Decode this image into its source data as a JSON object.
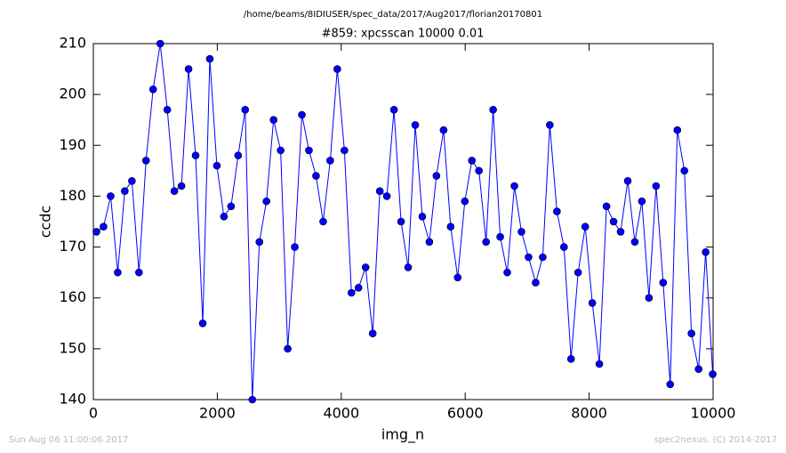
{
  "chart_data": {
    "type": "line",
    "suptitle": "/home/beams/8IDIUSER/spec_data/2017/Aug2017/florian20170801",
    "title": "#859: xpcsscan 10000 0.01",
    "x_label": "img_n",
    "y_label": "ccdc",
    "timestamp": "Sun Aug 06 11:00:06 2017",
    "credit": "spec2nexus, (C) 2014-2017",
    "x": [
      50,
      164,
      279,
      393,
      507,
      622,
      736,
      850,
      964,
      1079,
      1193,
      1307,
      1422,
      1536,
      1650,
      1765,
      1879,
      1993,
      2107,
      2222,
      2336,
      2450,
      2565,
      2679,
      2793,
      2908,
      3022,
      3136,
      3250,
      3365,
      3479,
      3593,
      3708,
      3822,
      3936,
      4051,
      4165,
      4279,
      4393,
      4508,
      4622,
      4736,
      4851,
      4965,
      5079,
      5194,
      5308,
      5422,
      5536,
      5651,
      5765,
      5879,
      5994,
      6108,
      6222,
      6337,
      6451,
      6565,
      6679,
      6794,
      6908,
      7022,
      7137,
      7251,
      7365,
      7480,
      7594,
      7708,
      7822,
      7937,
      8051,
      8165,
      8280,
      8394,
      8508,
      8623,
      8737,
      8851,
      8965,
      9080,
      9194,
      9308,
      9423,
      9537,
      9651,
      9766,
      9880,
      9994
    ],
    "series": [
      {
        "color": "#0000ff",
        "values": [
          173,
          174,
          180,
          165,
          181,
          183,
          165,
          187,
          201,
          210,
          197,
          181,
          182,
          205,
          188,
          155,
          207,
          186,
          176,
          178,
          188,
          197,
          140,
          171,
          179,
          195,
          189,
          150,
          170,
          196,
          189,
          184,
          175,
          187,
          205,
          189,
          161,
          162,
          166,
          153,
          181,
          180,
          197,
          175,
          166,
          194,
          176,
          171,
          184,
          193,
          174,
          164,
          179,
          187,
          185,
          171,
          197,
          172,
          165,
          182,
          173,
          168,
          163,
          168,
          194,
          177,
          170,
          148,
          165,
          174,
          159,
          147,
          178,
          175,
          173,
          183,
          171,
          179,
          160,
          182,
          163,
          143,
          193,
          185,
          153,
          146,
          169,
          145
        ]
      }
    ],
    "xlim": [
      0,
      10000
    ],
    "xticks": [
      0,
      2000,
      4000,
      6000,
      8000,
      10000
    ],
    "ylim": [
      140,
      210
    ],
    "yticks": [
      140,
      150,
      160,
      170,
      180,
      190,
      200,
      210
    ]
  }
}
